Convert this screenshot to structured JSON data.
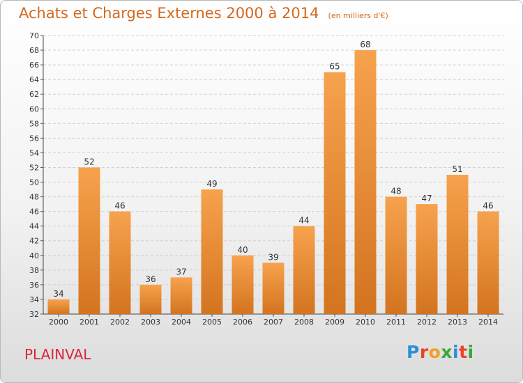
{
  "header": {
    "title": "Achats et Charges Externes 2000 à 2014",
    "unit": "(en milliers d'€)"
  },
  "footer": {
    "commune": "PLAINVAL",
    "brand": "Proxiti"
  },
  "colors": {
    "bar_light": "#f7a24d",
    "bar_dark": "#d3741f",
    "accent": "#d2691e",
    "commune": "#d9263c"
  },
  "chart_data": {
    "type": "bar",
    "categories": [
      "2000",
      "2001",
      "2002",
      "2003",
      "2004",
      "2005",
      "2006",
      "2007",
      "2008",
      "2009",
      "2010",
      "2011",
      "2012",
      "2013",
      "2014"
    ],
    "values": [
      34,
      52,
      46,
      36,
      37,
      49,
      40,
      39,
      44,
      65,
      68,
      48,
      47,
      51,
      46
    ],
    "title": "Achats et Charges Externes 2000 à 2014",
    "subtitle": "(en milliers d'€)",
    "xlabel": "",
    "ylabel": "",
    "ylim": [
      32,
      70
    ],
    "ytick_step": 2,
    "grid": true,
    "data_labels": true
  }
}
